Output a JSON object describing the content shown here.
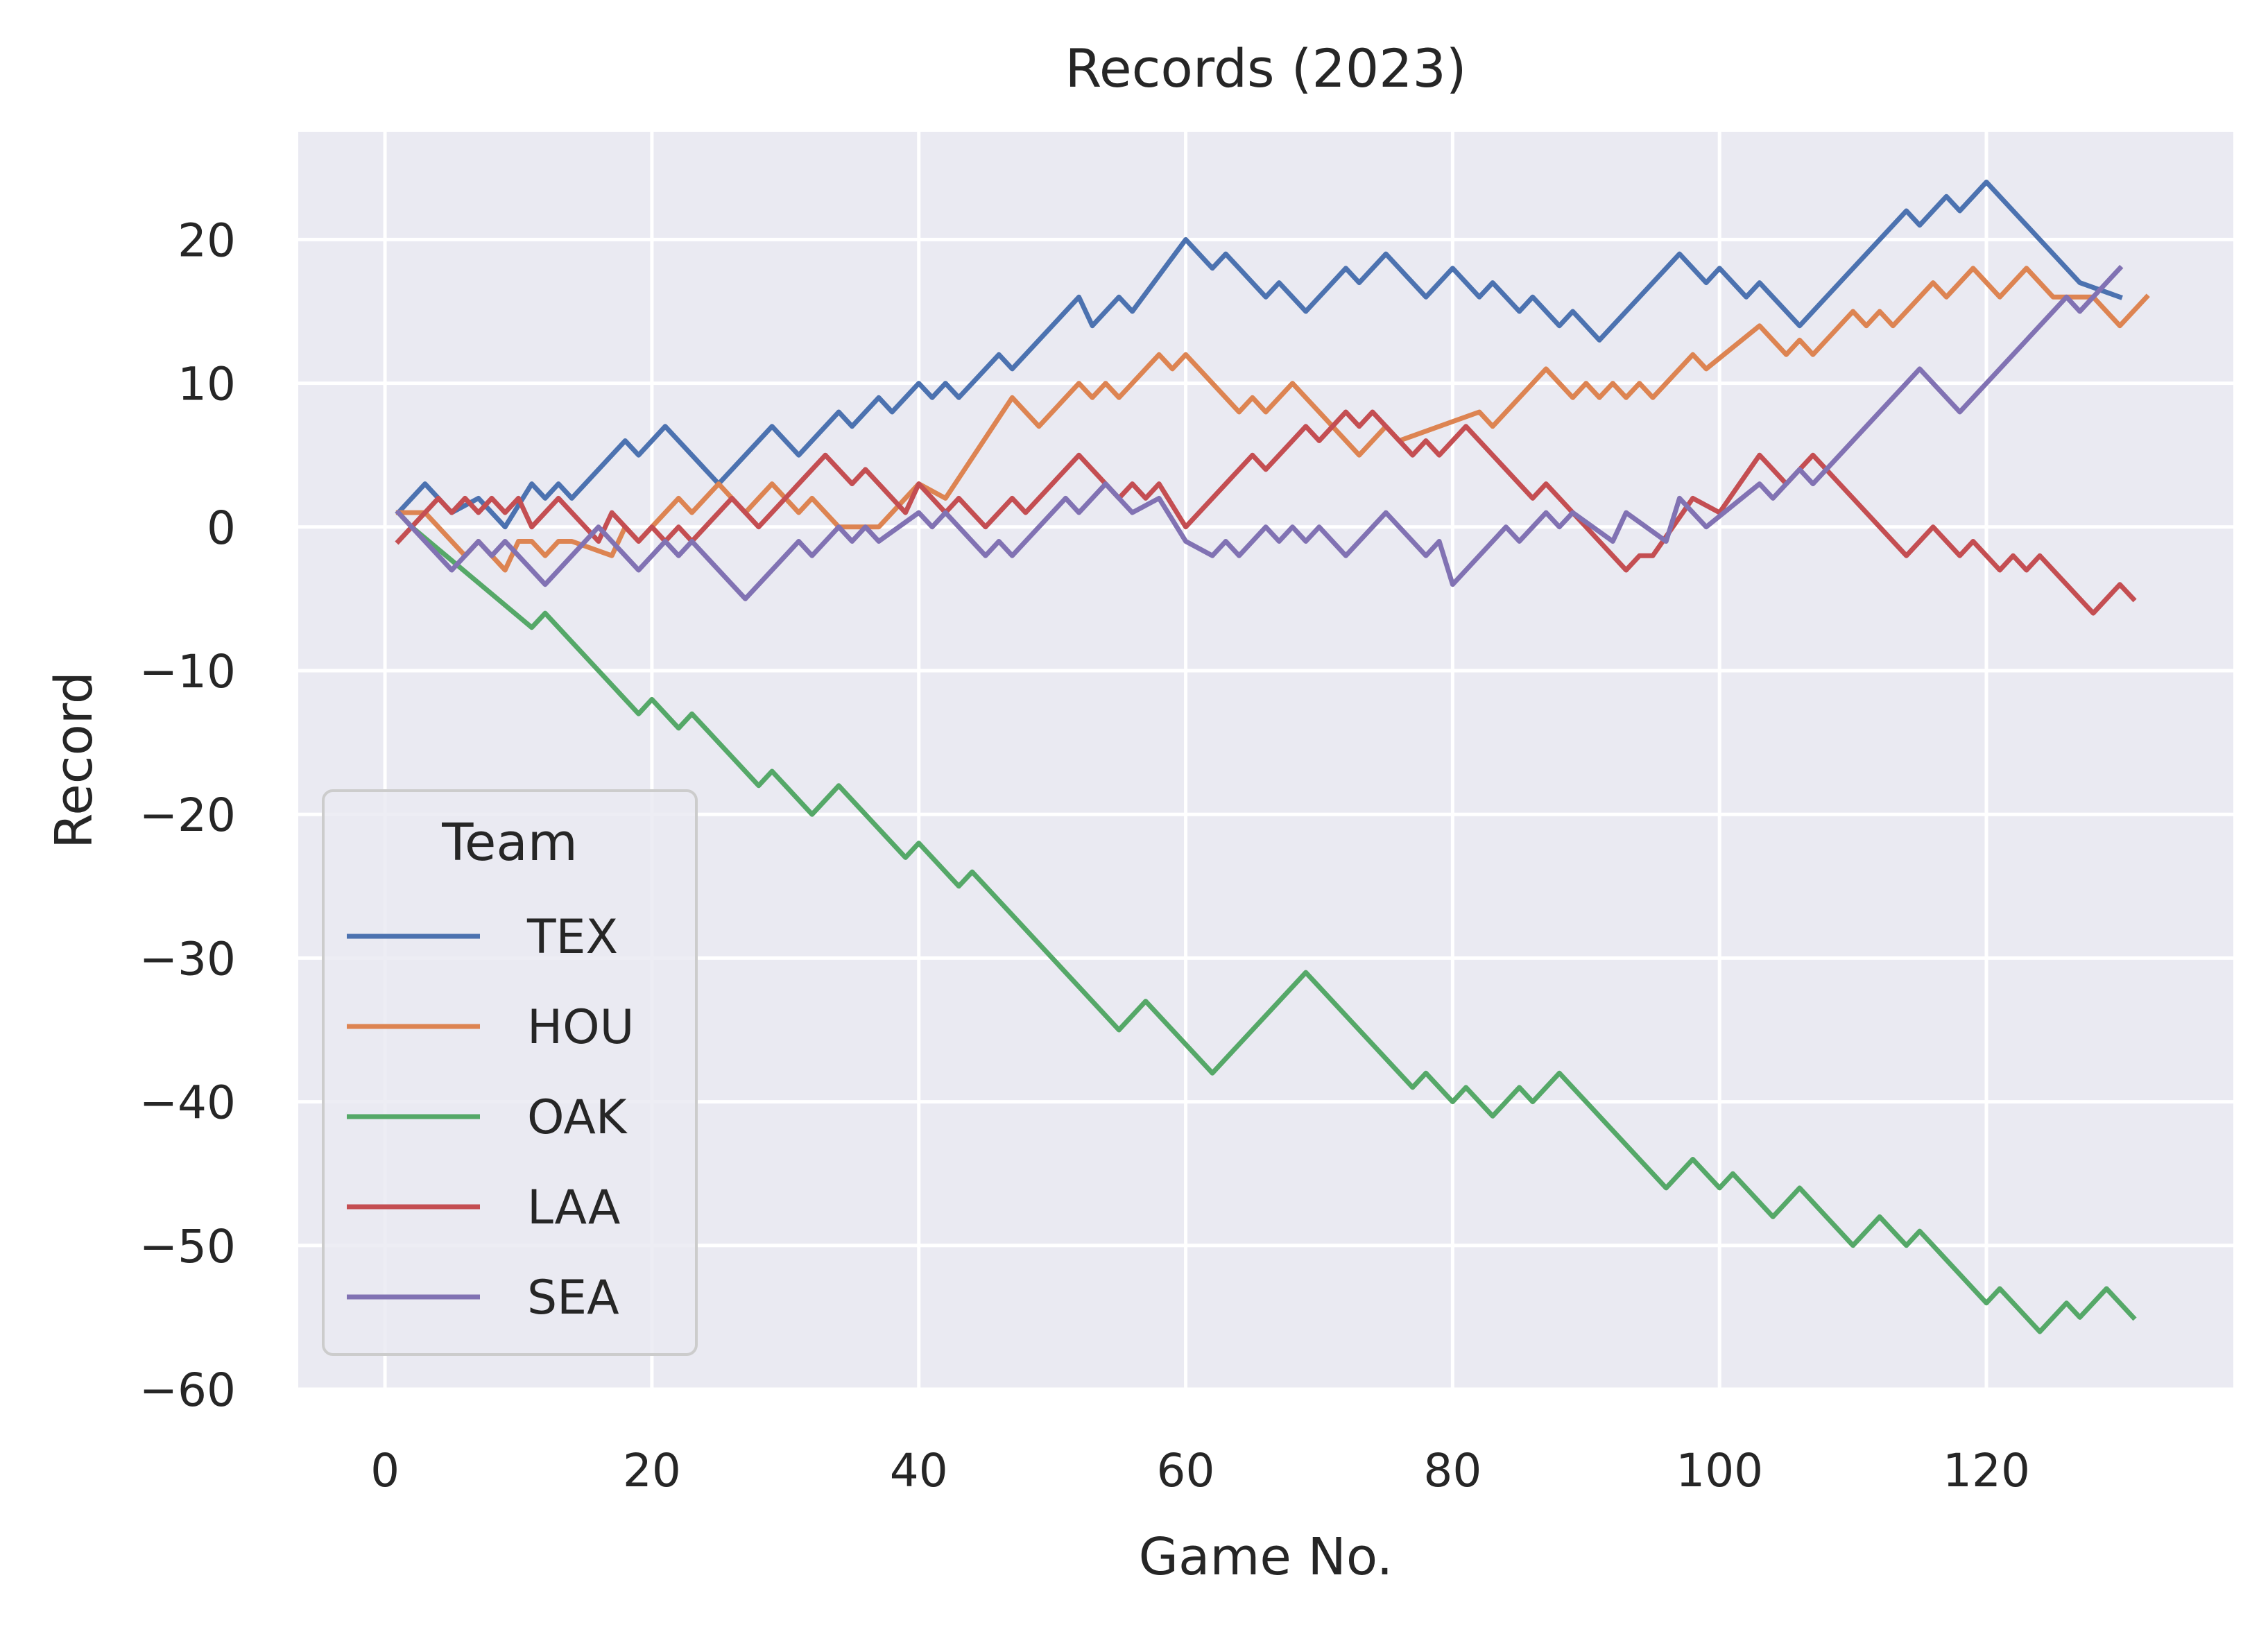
{
  "chart_data": {
    "type": "line",
    "title": "Records (2023)",
    "xlabel": "Game No.",
    "ylabel": "Record",
    "xlim": [
      -6.5,
      138.5
    ],
    "ylim": [
      -60,
      27.5
    ],
    "xticks": [
      0,
      20,
      40,
      60,
      80,
      100,
      120
    ],
    "yticks": [
      20,
      10,
      0,
      -10,
      -20,
      -30,
      -40,
      -50,
      -60
    ],
    "grid": true,
    "legend": {
      "title": "Team",
      "placement": "lower-left"
    },
    "colors": {
      "TEX": "#4c72b0",
      "HOU": "#dd8452",
      "OAK": "#55a868",
      "LAA": "#c44e52",
      "SEA": "#8172b3"
    },
    "series": [
      {
        "name": "TEX",
        "points": [
          [
            1,
            1
          ],
          [
            3,
            3
          ],
          [
            5,
            1
          ],
          [
            7,
            2
          ],
          [
            9,
            0
          ],
          [
            11,
            3
          ],
          [
            12,
            2
          ],
          [
            13,
            3
          ],
          [
            14,
            2
          ],
          [
            18,
            6
          ],
          [
            19,
            5
          ],
          [
            21,
            7
          ],
          [
            25,
            3
          ],
          [
            29,
            7
          ],
          [
            31,
            5
          ],
          [
            34,
            8
          ],
          [
            35,
            7
          ],
          [
            37,
            9
          ],
          [
            38,
            8
          ],
          [
            40,
            10
          ],
          [
            41,
            9
          ],
          [
            42,
            10
          ],
          [
            43,
            9
          ],
          [
            46,
            12
          ],
          [
            47,
            11
          ],
          [
            52,
            16
          ],
          [
            53,
            14
          ],
          [
            55,
            16
          ],
          [
            56,
            15
          ],
          [
            60,
            20
          ],
          [
            62,
            18
          ],
          [
            63,
            19
          ],
          [
            66,
            16
          ],
          [
            67,
            17
          ],
          [
            69,
            15
          ],
          [
            72,
            18
          ],
          [
            73,
            17
          ],
          [
            75,
            19
          ],
          [
            78,
            16
          ],
          [
            80,
            18
          ],
          [
            82,
            16
          ],
          [
            83,
            17
          ],
          [
            85,
            15
          ],
          [
            86,
            16
          ],
          [
            88,
            14
          ],
          [
            89,
            15
          ],
          [
            91,
            13
          ],
          [
            97,
            19
          ],
          [
            99,
            17
          ],
          [
            100,
            18
          ],
          [
            102,
            16
          ],
          [
            103,
            17
          ],
          [
            106,
            14
          ],
          [
            114,
            22
          ],
          [
            115,
            21
          ],
          [
            117,
            23
          ],
          [
            118,
            22
          ],
          [
            120,
            24
          ],
          [
            127,
            17
          ],
          [
            130,
            16
          ]
        ]
      },
      {
        "name": "HOU",
        "points": [
          [
            1,
            1
          ],
          [
            3,
            1
          ],
          [
            4,
            0
          ],
          [
            6,
            -2
          ],
          [
            7,
            -1
          ],
          [
            9,
            -3
          ],
          [
            10,
            -1
          ],
          [
            11,
            -1
          ],
          [
            12,
            -2
          ],
          [
            13,
            -1
          ],
          [
            14,
            -1
          ],
          [
            17,
            -2
          ],
          [
            18,
            0
          ],
          [
            19,
            -1
          ],
          [
            20,
            0
          ],
          [
            22,
            2
          ],
          [
            23,
            1
          ],
          [
            25,
            3
          ],
          [
            27,
            1
          ],
          [
            29,
            3
          ],
          [
            31,
            1
          ],
          [
            32,
            2
          ],
          [
            34,
            0
          ],
          [
            37,
            0
          ],
          [
            40,
            3
          ],
          [
            42,
            2
          ],
          [
            47,
            9
          ],
          [
            49,
            7
          ],
          [
            52,
            10
          ],
          [
            53,
            9
          ],
          [
            54,
            10
          ],
          [
            55,
            9
          ],
          [
            58,
            12
          ],
          [
            59,
            11
          ],
          [
            60,
            12
          ],
          [
            64,
            8
          ],
          [
            65,
            9
          ],
          [
            66,
            8
          ],
          [
            68,
            10
          ],
          [
            73,
            5
          ],
          [
            75,
            7
          ],
          [
            76,
            6
          ],
          [
            82,
            8
          ],
          [
            83,
            7
          ],
          [
            87,
            11
          ],
          [
            89,
            9
          ],
          [
            90,
            10
          ],
          [
            91,
            9
          ],
          [
            92,
            10
          ],
          [
            93,
            9
          ],
          [
            94,
            10
          ],
          [
            95,
            9
          ],
          [
            98,
            12
          ],
          [
            99,
            11
          ],
          [
            103,
            14
          ],
          [
            105,
            12
          ],
          [
            106,
            13
          ],
          [
            107,
            12
          ],
          [
            110,
            15
          ],
          [
            111,
            14
          ],
          [
            112,
            15
          ],
          [
            113,
            14
          ],
          [
            116,
            17
          ],
          [
            117,
            16
          ],
          [
            119,
            18
          ],
          [
            121,
            16
          ],
          [
            123,
            18
          ],
          [
            125,
            16
          ],
          [
            127,
            16
          ],
          [
            128,
            16
          ],
          [
            130,
            14
          ],
          [
            132,
            16
          ]
        ]
      },
      {
        "name": "OAK",
        "points": [
          [
            1,
            1
          ],
          [
            2,
            0
          ],
          [
            11,
            -7
          ],
          [
            12,
            -6
          ],
          [
            19,
            -13
          ],
          [
            20,
            -12
          ],
          [
            22,
            -14
          ],
          [
            23,
            -13
          ],
          [
            28,
            -18
          ],
          [
            29,
            -17
          ],
          [
            32,
            -20
          ],
          [
            34,
            -18
          ],
          [
            39,
            -23
          ],
          [
            40,
            -22
          ],
          [
            43,
            -25
          ],
          [
            44,
            -24
          ],
          [
            55,
            -35
          ],
          [
            57,
            -33
          ],
          [
            62,
            -38
          ],
          [
            69,
            -31
          ],
          [
            77,
            -39
          ],
          [
            78,
            -38
          ],
          [
            80,
            -40
          ],
          [
            81,
            -39
          ],
          [
            83,
            -41
          ],
          [
            85,
            -39
          ],
          [
            86,
            -40
          ],
          [
            88,
            -38
          ],
          [
            96,
            -46
          ],
          [
            98,
            -44
          ],
          [
            100,
            -46
          ],
          [
            101,
            -45
          ],
          [
            104,
            -48
          ],
          [
            106,
            -46
          ],
          [
            110,
            -50
          ],
          [
            112,
            -48
          ],
          [
            114,
            -50
          ],
          [
            115,
            -49
          ],
          [
            120,
            -54
          ],
          [
            121,
            -53
          ],
          [
            124,
            -56
          ],
          [
            126,
            -54
          ],
          [
            127,
            -55
          ],
          [
            129,
            -53
          ],
          [
            131,
            -55
          ]
        ]
      },
      {
        "name": "LAA",
        "points": [
          [
            1,
            -1
          ],
          [
            3,
            1
          ],
          [
            4,
            2
          ],
          [
            5,
            1
          ],
          [
            6,
            2
          ],
          [
            7,
            1
          ],
          [
            8,
            2
          ],
          [
            9,
            1
          ],
          [
            10,
            2
          ],
          [
            11,
            0
          ],
          [
            13,
            2
          ],
          [
            16,
            -1
          ],
          [
            17,
            1
          ],
          [
            19,
            -1
          ],
          [
            20,
            0
          ],
          [
            21,
            -1
          ],
          [
            22,
            0
          ],
          [
            23,
            -1
          ],
          [
            26,
            2
          ],
          [
            28,
            0
          ],
          [
            33,
            5
          ],
          [
            35,
            3
          ],
          [
            36,
            4
          ],
          [
            39,
            1
          ],
          [
            40,
            3
          ],
          [
            42,
            1
          ],
          [
            43,
            2
          ],
          [
            45,
            0
          ],
          [
            47,
            2
          ],
          [
            48,
            1
          ],
          [
            52,
            5
          ],
          [
            55,
            2
          ],
          [
            56,
            3
          ],
          [
            57,
            2
          ],
          [
            58,
            3
          ],
          [
            60,
            0
          ],
          [
            65,
            5
          ],
          [
            66,
            4
          ],
          [
            69,
            7
          ],
          [
            70,
            6
          ],
          [
            72,
            8
          ],
          [
            73,
            7
          ],
          [
            74,
            8
          ],
          [
            77,
            5
          ],
          [
            78,
            6
          ],
          [
            79,
            5
          ],
          [
            81,
            7
          ],
          [
            86,
            2
          ],
          [
            87,
            3
          ],
          [
            93,
            -3
          ],
          [
            94,
            -2
          ],
          [
            95,
            -2
          ],
          [
            98,
            2
          ],
          [
            100,
            1
          ],
          [
            103,
            5
          ],
          [
            105,
            3
          ],
          [
            107,
            5
          ],
          [
            108,
            4
          ],
          [
            114,
            -2
          ],
          [
            116,
            0
          ],
          [
            118,
            -2
          ],
          [
            119,
            -1
          ],
          [
            121,
            -3
          ],
          [
            122,
            -2
          ],
          [
            123,
            -3
          ],
          [
            124,
            -2
          ],
          [
            128,
            -6
          ],
          [
            130,
            -4
          ],
          [
            131,
            -5
          ]
        ]
      },
      {
        "name": "SEA",
        "points": [
          [
            1,
            1
          ],
          [
            5,
            -3
          ],
          [
            7,
            -1
          ],
          [
            8,
            -2
          ],
          [
            9,
            -1
          ],
          [
            10,
            -2
          ],
          [
            12,
            -4
          ],
          [
            16,
            0
          ],
          [
            19,
            -3
          ],
          [
            21,
            -1
          ],
          [
            22,
            -2
          ],
          [
            23,
            -1
          ],
          [
            27,
            -5
          ],
          [
            31,
            -1
          ],
          [
            32,
            -2
          ],
          [
            34,
            0
          ],
          [
            35,
            -1
          ],
          [
            36,
            0
          ],
          [
            37,
            -1
          ],
          [
            40,
            1
          ],
          [
            41,
            0
          ],
          [
            42,
            1
          ],
          [
            45,
            -2
          ],
          [
            46,
            -1
          ],
          [
            47,
            -2
          ],
          [
            51,
            2
          ],
          [
            52,
            1
          ],
          [
            54,
            3
          ],
          [
            56,
            1
          ],
          [
            58,
            2
          ],
          [
            60,
            -1
          ],
          [
            62,
            -2
          ],
          [
            63,
            -1
          ],
          [
            64,
            -2
          ],
          [
            66,
            0
          ],
          [
            67,
            -1
          ],
          [
            68,
            0
          ],
          [
            69,
            -1
          ],
          [
            70,
            0
          ],
          [
            72,
            -2
          ],
          [
            75,
            1
          ],
          [
            77,
            -1
          ],
          [
            78,
            -2
          ],
          [
            79,
            -1
          ],
          [
            80,
            -4
          ],
          [
            84,
            0
          ],
          [
            85,
            -1
          ],
          [
            87,
            1
          ],
          [
            88,
            0
          ],
          [
            89,
            1
          ],
          [
            92,
            -1
          ],
          [
            93,
            1
          ],
          [
            96,
            -1
          ],
          [
            97,
            2
          ],
          [
            99,
            0
          ],
          [
            103,
            3
          ],
          [
            104,
            2
          ],
          [
            106,
            4
          ],
          [
            107,
            3
          ],
          [
            115,
            11
          ],
          [
            118,
            8
          ],
          [
            126,
            16
          ],
          [
            127,
            15
          ],
          [
            130,
            18
          ]
        ]
      }
    ]
  }
}
